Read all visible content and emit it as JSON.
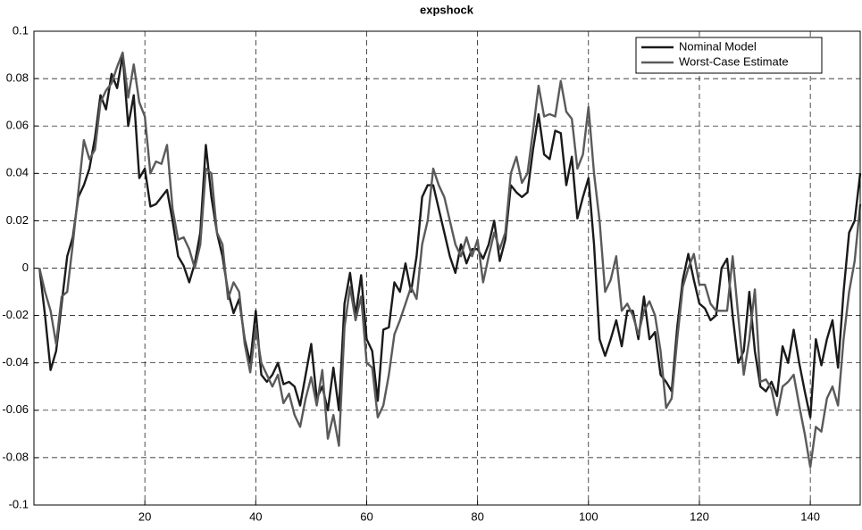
{
  "chart_data": {
    "type": "line",
    "title": "expshock",
    "x": [
      1,
      2,
      3,
      4,
      5,
      6,
      7,
      8,
      9,
      10,
      11,
      12,
      13,
      14,
      15,
      16,
      17,
      18,
      19,
      20,
      21,
      22,
      23,
      24,
      25,
      26,
      27,
      28,
      29,
      30,
      31,
      32,
      33,
      34,
      35,
      36,
      37,
      38,
      39,
      40,
      41,
      42,
      43,
      44,
      45,
      46,
      47,
      48,
      49,
      50,
      51,
      52,
      53,
      54,
      55,
      56,
      57,
      58,
      59,
      60,
      61,
      62,
      63,
      64,
      65,
      66,
      67,
      68,
      69,
      70,
      71,
      72,
      73,
      74,
      75,
      76,
      77,
      78,
      79,
      80,
      81,
      82,
      83,
      84,
      85,
      86,
      87,
      88,
      89,
      90,
      91,
      92,
      93,
      94,
      95,
      96,
      97,
      98,
      99,
      100,
      101,
      102,
      103,
      104,
      105,
      106,
      107,
      108,
      109,
      110,
      111,
      112,
      113,
      114,
      115,
      116,
      117,
      118,
      119,
      120,
      121,
      122,
      123,
      124,
      125,
      126,
      127,
      128,
      129,
      130,
      131,
      132,
      133,
      134,
      135,
      136,
      137,
      138,
      139,
      140,
      141,
      142,
      143,
      144,
      145,
      146,
      147,
      148,
      149
    ],
    "series": [
      {
        "name": "Nominal Model",
        "color": "#1a1a1a",
        "values": [
          0,
          -0.02,
          -0.043,
          -0.035,
          -0.015,
          0.005,
          0.013,
          0.03,
          0.035,
          0.042,
          0.055,
          0.073,
          0.067,
          0.082,
          0.076,
          0.09,
          0.06,
          0.073,
          0.038,
          0.042,
          0.026,
          0.027,
          0.03,
          0.033,
          0.02,
          0.005,
          0.001,
          -0.006,
          0.002,
          0.015,
          0.052,
          0.03,
          0.015,
          0.005,
          -0.01,
          -0.019,
          -0.013,
          -0.03,
          -0.04,
          -0.018,
          -0.045,
          -0.048,
          -0.045,
          -0.04,
          -0.049,
          -0.048,
          -0.05,
          -0.058,
          -0.045,
          -0.032,
          -0.055,
          -0.05,
          -0.06,
          -0.042,
          -0.06,
          -0.015,
          -0.002,
          -0.02,
          -0.003,
          -0.03,
          -0.035,
          -0.056,
          -0.026,
          -0.025,
          -0.006,
          -0.01,
          0.002,
          -0.01,
          0.005,
          0.03,
          0.035,
          0.035,
          0.025,
          0.015,
          0.005,
          -0.002,
          0.01,
          0.002,
          0.008,
          0.008,
          0.004,
          0.01,
          0.02,
          0.003,
          0.012,
          0.035,
          0.032,
          0.03,
          0.032,
          0.05,
          0.065,
          0.048,
          0.046,
          0.058,
          0.057,
          0.035,
          0.047,
          0.021,
          0.03,
          0.038,
          0.01,
          -0.03,
          -0.037,
          -0.03,
          -0.022,
          -0.033,
          -0.018,
          -0.018,
          -0.03,
          -0.012,
          -0.03,
          -0.027,
          -0.045,
          -0.048,
          -0.052,
          -0.025,
          -0.005,
          0.006,
          -0.005,
          -0.015,
          -0.017,
          -0.022,
          -0.02,
          0,
          0.004,
          -0.02,
          -0.04,
          -0.035,
          -0.01,
          -0.035,
          -0.05,
          -0.052,
          -0.048,
          -0.054,
          -0.033,
          -0.04,
          -0.026,
          -0.04,
          -0.052,
          -0.063,
          -0.03,
          -0.041,
          -0.03,
          -0.022,
          -0.042,
          -0.01,
          0.015,
          0.02,
          0.04
        ]
      },
      {
        "name": "Worst-Case Estimate",
        "color": "#5a5a5a",
        "values": [
          0,
          -0.01,
          -0.018,
          -0.032,
          -0.012,
          -0.01,
          0.01,
          0.032,
          0.054,
          0.046,
          0.05,
          0.07,
          0.075,
          0.078,
          0.085,
          0.091,
          0.072,
          0.086,
          0.07,
          0.064,
          0.04,
          0.045,
          0.044,
          0.052,
          0.025,
          0.012,
          0.013,
          0.008,
          0,
          0.01,
          0.042,
          0.04,
          0.015,
          0.01,
          -0.013,
          -0.006,
          -0.01,
          -0.032,
          -0.044,
          -0.025,
          -0.04,
          -0.045,
          -0.05,
          -0.045,
          -0.057,
          -0.053,
          -0.062,
          -0.067,
          -0.055,
          -0.046,
          -0.058,
          -0.043,
          -0.072,
          -0.062,
          -0.075,
          -0.025,
          -0.008,
          -0.022,
          -0.012,
          -0.04,
          -0.042,
          -0.063,
          -0.058,
          -0.045,
          -0.028,
          -0.022,
          -0.015,
          -0.008,
          -0.013,
          0.01,
          0.02,
          0.042,
          0.035,
          0.03,
          0.02,
          0.01,
          0.005,
          0.013,
          0.005,
          0.012,
          -0.006,
          0.005,
          0.015,
          0.008,
          0.015,
          0.04,
          0.047,
          0.036,
          0.04,
          0.058,
          0.077,
          0.064,
          0.065,
          0.064,
          0.079,
          0.066,
          0.063,
          0.042,
          0.048,
          0.068,
          0.04,
          0.02,
          -0.01,
          -0.005,
          0.005,
          -0.018,
          -0.015,
          -0.02,
          -0.028,
          -0.018,
          -0.014,
          -0.02,
          -0.035,
          -0.059,
          -0.055,
          -0.03,
          -0.008,
          0,
          0.006,
          -0.007,
          -0.007,
          -0.015,
          -0.018,
          -0.018,
          -0.018,
          0.005,
          -0.02,
          -0.045,
          -0.03,
          -0.009,
          -0.048,
          -0.047,
          -0.051,
          -0.062,
          -0.05,
          -0.048,
          -0.045,
          -0.058,
          -0.07,
          -0.084,
          -0.067,
          -0.069,
          -0.055,
          -0.05,
          -0.058,
          -0.03,
          -0.01,
          0.003,
          0.027
        ]
      }
    ],
    "xlim": [
      0,
      149
    ],
    "xticks": [
      20,
      40,
      60,
      80,
      100,
      120,
      140
    ],
    "ylim": [
      -0.1,
      0.1
    ],
    "yticks": [
      -0.1,
      -0.08,
      -0.06,
      -0.04,
      -0.02,
      0,
      0.02,
      0.04,
      0.06,
      0.08,
      0.1
    ],
    "grid": true,
    "legend": "upper right"
  }
}
